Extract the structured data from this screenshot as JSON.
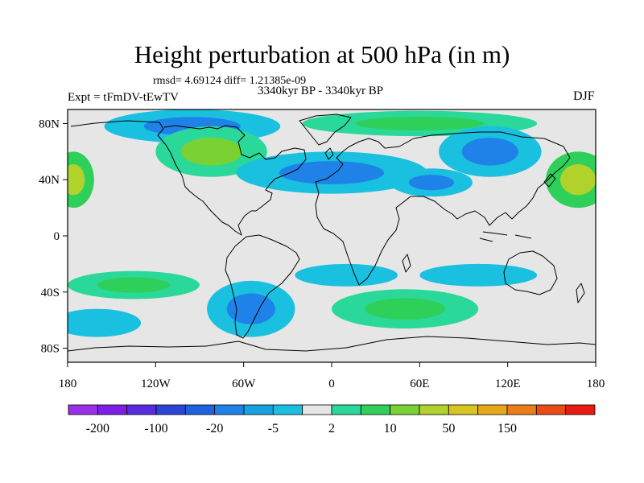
{
  "chart_data": {
    "type": "heatmap",
    "title": "Height perturbation at 500 hPa (in m)",
    "stats_line": "rmsd= 4.69124 diff= 1.21385e-09",
    "left_label": "Expt = tFmDV-tEwTV",
    "center_label": "3340kyr BP - 3340kyr BP",
    "right_label": "DJF",
    "x_axis": {
      "range": [
        -180,
        180
      ],
      "ticks": [
        {
          "value": -180,
          "label": "180"
        },
        {
          "value": -120,
          "label": "120W"
        },
        {
          "value": -60,
          "label": "60W"
        },
        {
          "value": 0,
          "label": "0"
        },
        {
          "value": 60,
          "label": "60E"
        },
        {
          "value": 120,
          "label": "120E"
        },
        {
          "value": 180,
          "label": "180"
        }
      ]
    },
    "y_axis": {
      "range": [
        -90,
        90
      ],
      "ticks": [
        {
          "value": 80,
          "label": "80N"
        },
        {
          "value": 40,
          "label": "40N"
        },
        {
          "value": 0,
          "label": "0"
        },
        {
          "value": -40,
          "label": "40S"
        },
        {
          "value": -80,
          "label": "80S"
        }
      ]
    },
    "colorbar": {
      "colors": [
        "#9b2fe8",
        "#7d1ee8",
        "#5a2ae0",
        "#2a44d8",
        "#1f62e0",
        "#1f82e8",
        "#17a2e0",
        "#1ac0e0",
        "#e6e6e6",
        "#2ad89a",
        "#2ed05a",
        "#7ad232",
        "#b0d22a",
        "#d8c620",
        "#e6a816",
        "#ea7e14",
        "#ea4a14",
        "#e81a12"
      ],
      "labels": [
        {
          "after_box": 1,
          "text": "-200"
        },
        {
          "after_box": 3,
          "text": "-100"
        },
        {
          "after_box": 5,
          "text": "-20"
        },
        {
          "after_box": 7,
          "text": "-5"
        },
        {
          "after_box": 9,
          "text": "2"
        },
        {
          "after_box": 11,
          "text": "10"
        },
        {
          "after_box": 13,
          "text": "50"
        },
        {
          "after_box": 15,
          "text": "150"
        }
      ]
    },
    "anomaly_regions": [
      {
        "name": "arctic-canada-low",
        "lon": -95,
        "lat": 78,
        "rlon": 60,
        "rlat": 12,
        "level": -5,
        "core": -20
      },
      {
        "name": "arctic-eurasia-high",
        "lon": 60,
        "lat": 80,
        "rlon": 80,
        "rlat": 9,
        "level": 5,
        "core": 10
      },
      {
        "name": "north-america-high",
        "lon": -82,
        "lat": 60,
        "rlon": 38,
        "rlat": 18,
        "level": 5,
        "core": 20
      },
      {
        "name": "atlantic-europe-low",
        "lon": 0,
        "lat": 45,
        "rlon": 65,
        "rlat": 15,
        "level": -5,
        "core": -20
      },
      {
        "name": "asia-low",
        "lon": 68,
        "lat": 38,
        "rlon": 28,
        "rlat": 10,
        "level": -5,
        "core": -20
      },
      {
        "name": "east-asia-low",
        "lon": 108,
        "lat": 60,
        "rlon": 35,
        "rlat": 18,
        "level": -5,
        "core": -20
      },
      {
        "name": "pacific-west-high",
        "lon": 168,
        "lat": 40,
        "rlon": 22,
        "rlat": 20,
        "level": 10,
        "core": 50
      },
      {
        "name": "pacific-east-high",
        "lon": -176,
        "lat": 40,
        "rlon": 14,
        "rlat": 20,
        "level": 10,
        "core": 50
      },
      {
        "name": "south-pacific-high",
        "lon": -135,
        "lat": -35,
        "rlon": 45,
        "rlat": 10,
        "level": 5,
        "core": 10
      },
      {
        "name": "south-america-low",
        "lon": -55,
        "lat": -52,
        "rlon": 30,
        "rlat": 20,
        "level": -5,
        "core": -20
      },
      {
        "name": "south-atlantic-low",
        "lon": 10,
        "lat": -28,
        "rlon": 35,
        "rlat": 8,
        "level": -5,
        "core": -5
      },
      {
        "name": "southern-ocean-high",
        "lon": 50,
        "lat": -52,
        "rlon": 50,
        "rlat": 14,
        "level": 5,
        "core": 10
      },
      {
        "name": "south-pacific-low",
        "lon": -160,
        "lat": -62,
        "rlon": 30,
        "rlat": 10,
        "level": -5,
        "core": -5
      },
      {
        "name": "indian-ocean-low",
        "lon": 100,
        "lat": -28,
        "rlon": 40,
        "rlat": 8,
        "level": -5,
        "core": -5
      }
    ]
  }
}
